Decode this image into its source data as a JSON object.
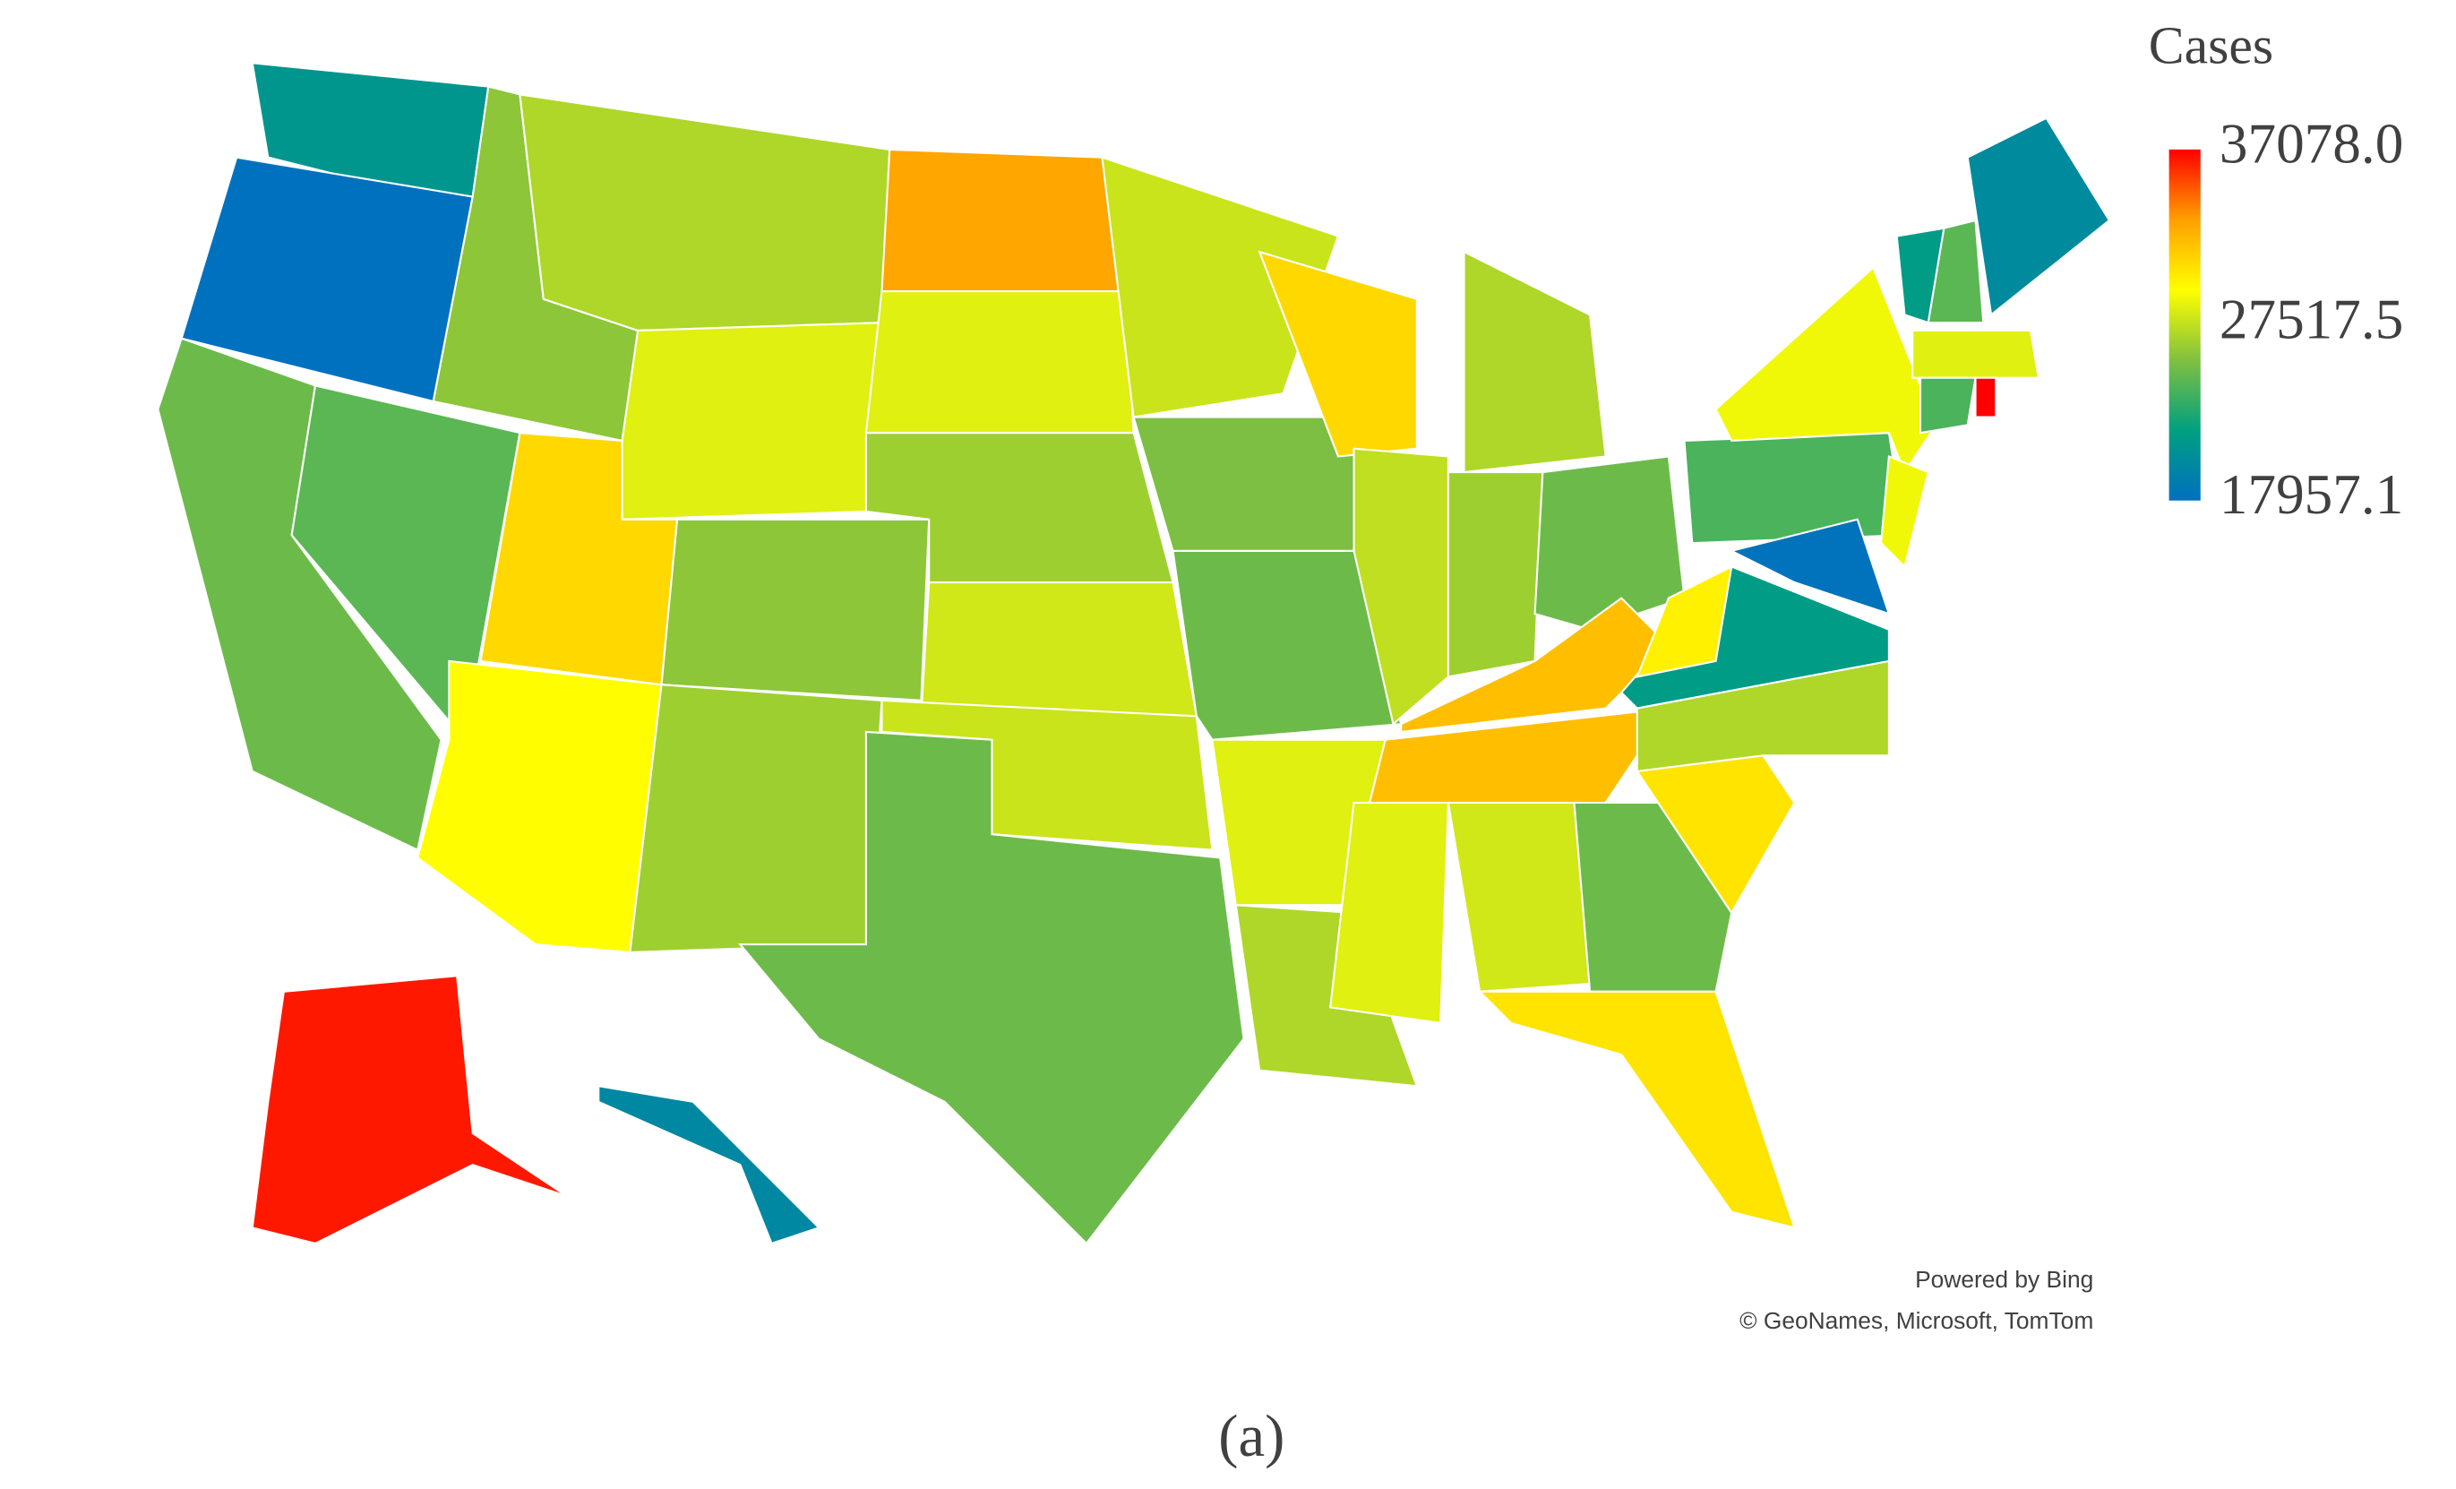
{
  "chart_data": {
    "type": "choropleth",
    "title": "Cases",
    "values": [
      21000,
      18000,
      25000,
      24500,
      26000,
      27000,
      28500,
      31000,
      29500,
      26000,
      26500,
      33000,
      28500,
      26500,
      28000,
      27800,
      25000,
      27800,
      25500,
      25000,
      28500,
      27000,
      31000,
      27500,
      27000,
      26500,
      25000,
      32000,
      32000,
      28500,
      28000,
      25000,
      30500,
      30500,
      27000,
      21500,
      30000,
      24000,
      29000,
      18200,
      29000,
      20000,
      21500,
      24500,
      28500,
      24000,
      37078,
      36500,
      19800
    ],
    "clim": [
      17957.1,
      37078
    ],
    "cticks": [
      {
        "value": 37078,
        "label": "37078.0"
      },
      27517.5,
      17957.1
    ],
    "colorscale": [
      "#0070c0",
      "#00a080",
      "#80c040",
      "#ffff00",
      "#ffa000",
      "#ff0000"
    ],
    "border_color": "#ffffff",
    "annotations": [
      "Powered by Bing",
      "© GeoNames, Microsoft, TomTom"
    ],
    "caption": "(a)"
  }
}
